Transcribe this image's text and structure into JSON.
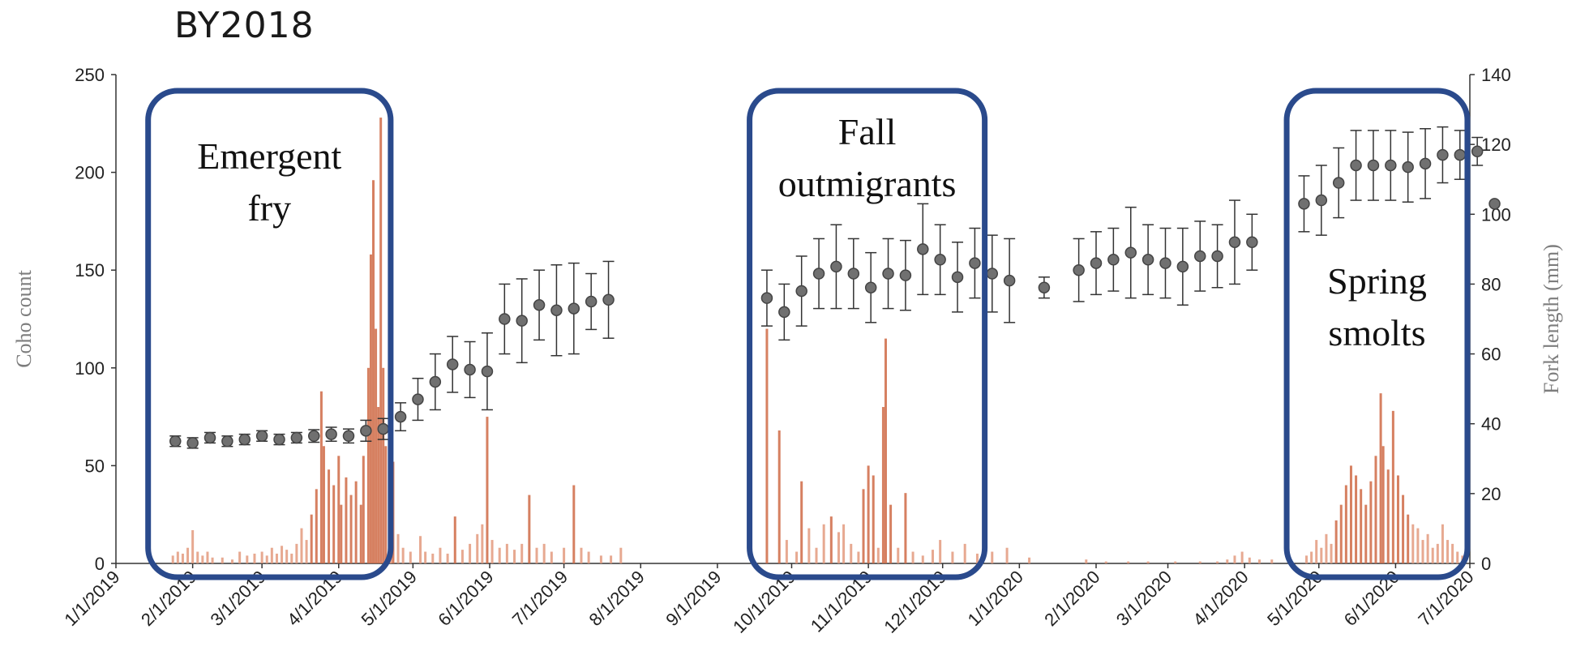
{
  "chart_data": {
    "type": "bar+scatter",
    "title": "BY2018",
    "ylabel": "Coho count",
    "y2label": "Fork length (mm)",
    "ylim": [
      0,
      250
    ],
    "y2lim": [
      0,
      140
    ],
    "yticks": [
      "0",
      "50",
      "100",
      "150",
      "200",
      "250"
    ],
    "y2ticks": [
      "0",
      "20",
      "40",
      "60",
      "80",
      "100",
      "120",
      "140"
    ],
    "xlim": [
      "2019-01-01",
      "2020-07-01"
    ],
    "xtick_labels": [
      "1/1/2019",
      "2/1/2019",
      "3/1/2019",
      "4/1/2019",
      "5/1/2019",
      "6/1/2019",
      "7/1/2019",
      "8/1/2019",
      "9/1/2019",
      "10/1/2019",
      "11/1/2019",
      "12/1/2019",
      "1/1/2020",
      "2/1/2020",
      "3/1/2020",
      "4/1/2020",
      "5/1/2020",
      "6/1/2020",
      "7/1/2020"
    ],
    "xtick_dates": [
      "2019-01-01",
      "2019-02-01",
      "2019-03-01",
      "2019-04-01",
      "2019-05-01",
      "2019-06-01",
      "2019-07-01",
      "2019-08-01",
      "2019-09-01",
      "2019-10-01",
      "2019-11-01",
      "2019-12-01",
      "2020-01-01",
      "2020-02-01",
      "2020-03-01",
      "2020-04-01",
      "2020-05-01",
      "2020-06-01",
      "2020-07-01"
    ],
    "colors": {
      "bars": "#e39a7e",
      "bars_strong": "#cf6a45",
      "markers": "#707070",
      "boxes": "#2a4a8c"
    },
    "annotations": [
      {
        "lines": [
          "Emergent",
          "fry"
        ],
        "start": "2019-01-14",
        "end": "2019-04-22"
      },
      {
        "lines": [
          "Fall",
          "outmigrants"
        ],
        "start": "2019-09-14",
        "end": "2019-12-18"
      },
      {
        "lines": [
          "Spring",
          "smolts"
        ],
        "start": "2020-04-18",
        "end": "2020-06-30"
      }
    ],
    "count_series": [
      [
        "2019-01-24",
        4
      ],
      [
        "2019-01-26",
        6
      ],
      [
        "2019-01-28",
        5
      ],
      [
        "2019-01-30",
        8
      ],
      [
        "2019-02-01",
        17
      ],
      [
        "2019-02-03",
        6
      ],
      [
        "2019-02-05",
        4
      ],
      [
        "2019-02-07",
        6
      ],
      [
        "2019-02-09",
        3
      ],
      [
        "2019-02-13",
        3
      ],
      [
        "2019-02-17",
        2
      ],
      [
        "2019-02-20",
        6
      ],
      [
        "2019-02-23",
        4
      ],
      [
        "2019-02-26",
        5
      ],
      [
        "2019-03-01",
        6
      ],
      [
        "2019-03-03",
        4
      ],
      [
        "2019-03-05",
        8
      ],
      [
        "2019-03-07",
        5
      ],
      [
        "2019-03-09",
        9
      ],
      [
        "2019-03-11",
        7
      ],
      [
        "2019-03-13",
        5
      ],
      [
        "2019-03-15",
        10
      ],
      [
        "2019-03-17",
        18
      ],
      [
        "2019-03-19",
        12
      ],
      [
        "2019-03-21",
        25
      ],
      [
        "2019-03-23",
        38
      ],
      [
        "2019-03-25",
        88
      ],
      [
        "2019-03-26",
        60
      ],
      [
        "2019-03-28",
        48
      ],
      [
        "2019-03-30",
        40
      ],
      [
        "2019-04-01",
        55
      ],
      [
        "2019-04-02",
        30
      ],
      [
        "2019-04-04",
        44
      ],
      [
        "2019-04-06",
        35
      ],
      [
        "2019-04-08",
        42
      ],
      [
        "2019-04-10",
        30
      ],
      [
        "2019-04-11",
        55
      ],
      [
        "2019-04-13",
        100
      ],
      [
        "2019-04-14",
        158
      ],
      [
        "2019-04-15",
        196
      ],
      [
        "2019-04-16",
        120
      ],
      [
        "2019-04-17",
        80
      ],
      [
        "2019-04-18",
        228
      ],
      [
        "2019-04-19",
        100
      ],
      [
        "2019-04-20",
        60
      ],
      [
        "2019-04-22",
        12
      ],
      [
        "2019-04-23",
        52
      ],
      [
        "2019-04-25",
        15
      ],
      [
        "2019-04-27",
        8
      ],
      [
        "2019-04-30",
        6
      ],
      [
        "2019-05-04",
        14
      ],
      [
        "2019-05-06",
        6
      ],
      [
        "2019-05-09",
        5
      ],
      [
        "2019-05-12",
        8
      ],
      [
        "2019-05-15",
        5
      ],
      [
        "2019-05-18",
        24
      ],
      [
        "2019-05-21",
        7
      ],
      [
        "2019-05-24",
        10
      ],
      [
        "2019-05-27",
        15
      ],
      [
        "2019-05-29",
        20
      ],
      [
        "2019-05-31",
        75
      ],
      [
        "2019-06-02",
        12
      ],
      [
        "2019-06-05",
        8
      ],
      [
        "2019-06-08",
        10
      ],
      [
        "2019-06-11",
        7
      ],
      [
        "2019-06-14",
        10
      ],
      [
        "2019-06-17",
        35
      ],
      [
        "2019-06-20",
        8
      ],
      [
        "2019-06-23",
        10
      ],
      [
        "2019-06-26",
        6
      ],
      [
        "2019-07-01",
        8
      ],
      [
        "2019-07-05",
        40
      ],
      [
        "2019-07-08",
        8
      ],
      [
        "2019-07-11",
        6
      ],
      [
        "2019-07-16",
        4
      ],
      [
        "2019-07-20",
        4
      ],
      [
        "2019-07-24",
        8
      ],
      [
        "2019-09-21",
        120
      ],
      [
        "2019-09-26",
        68
      ],
      [
        "2019-09-29",
        12
      ],
      [
        "2019-10-03",
        6
      ],
      [
        "2019-10-05",
        42
      ],
      [
        "2019-10-08",
        18
      ],
      [
        "2019-10-11",
        8
      ],
      [
        "2019-10-14",
        20
      ],
      [
        "2019-10-17",
        24
      ],
      [
        "2019-10-20",
        16
      ],
      [
        "2019-10-22",
        20
      ],
      [
        "2019-10-25",
        10
      ],
      [
        "2019-10-28",
        6
      ],
      [
        "2019-10-30",
        38
      ],
      [
        "2019-11-01",
        50
      ],
      [
        "2019-11-03",
        45
      ],
      [
        "2019-11-05",
        8
      ],
      [
        "2019-11-07",
        80
      ],
      [
        "2019-11-08",
        115
      ],
      [
        "2019-11-10",
        30
      ],
      [
        "2019-11-13",
        8
      ],
      [
        "2019-11-16",
        36
      ],
      [
        "2019-11-19",
        6
      ],
      [
        "2019-11-23",
        4
      ],
      [
        "2019-11-27",
        7
      ],
      [
        "2019-11-30",
        12
      ],
      [
        "2019-12-05",
        6
      ],
      [
        "2019-12-10",
        10
      ],
      [
        "2019-12-15",
        5
      ],
      [
        "2019-12-21",
        6
      ],
      [
        "2019-12-27",
        8
      ],
      [
        "2020-01-05",
        3
      ],
      [
        "2020-01-28",
        2
      ],
      [
        "2020-02-05",
        1
      ],
      [
        "2020-02-14",
        1
      ],
      [
        "2020-02-22",
        1
      ],
      [
        "2020-03-04",
        1
      ],
      [
        "2020-03-14",
        1
      ],
      [
        "2020-03-21",
        1
      ],
      [
        "2020-03-25",
        2
      ],
      [
        "2020-03-28",
        4
      ],
      [
        "2020-03-31",
        6
      ],
      [
        "2020-04-03",
        3
      ],
      [
        "2020-04-07",
        2
      ],
      [
        "2020-04-12",
        2
      ],
      [
        "2020-04-26",
        4
      ],
      [
        "2020-04-28",
        6
      ],
      [
        "2020-04-30",
        12
      ],
      [
        "2020-05-02",
        8
      ],
      [
        "2020-05-04",
        15
      ],
      [
        "2020-05-06",
        10
      ],
      [
        "2020-05-08",
        22
      ],
      [
        "2020-05-10",
        30
      ],
      [
        "2020-05-12",
        40
      ],
      [
        "2020-05-14",
        50
      ],
      [
        "2020-05-16",
        45
      ],
      [
        "2020-05-18",
        38
      ],
      [
        "2020-05-20",
        30
      ],
      [
        "2020-05-22",
        42
      ],
      [
        "2020-05-24",
        55
      ],
      [
        "2020-05-26",
        87
      ],
      [
        "2020-05-27",
        60
      ],
      [
        "2020-05-29",
        48
      ],
      [
        "2020-05-31",
        78
      ],
      [
        "2020-06-02",
        45
      ],
      [
        "2020-06-04",
        35
      ],
      [
        "2020-06-06",
        25
      ],
      [
        "2020-06-08",
        20
      ],
      [
        "2020-06-10",
        18
      ],
      [
        "2020-06-12",
        12
      ],
      [
        "2020-06-14",
        15
      ],
      [
        "2020-06-16",
        8
      ],
      [
        "2020-06-18",
        10
      ],
      [
        "2020-06-20",
        20
      ],
      [
        "2020-06-22",
        12
      ],
      [
        "2020-06-24",
        10
      ],
      [
        "2020-06-26",
        6
      ],
      [
        "2020-06-28",
        4
      ]
    ],
    "fork_length_series": [
      [
        "2019-01-25",
        35,
        1.5
      ],
      [
        "2019-02-01",
        34.5,
        1.5
      ],
      [
        "2019-02-08",
        36,
        1.5
      ],
      [
        "2019-02-15",
        35,
        1.5
      ],
      [
        "2019-02-22",
        35.5,
        1.5
      ],
      [
        "2019-03-01",
        36.5,
        1.5
      ],
      [
        "2019-03-08",
        35.5,
        1.5
      ],
      [
        "2019-03-15",
        36,
        1.5
      ],
      [
        "2019-03-22",
        36.5,
        1.8
      ],
      [
        "2019-03-29",
        37,
        2
      ],
      [
        "2019-04-05",
        36.5,
        2
      ],
      [
        "2019-04-12",
        38,
        3
      ],
      [
        "2019-04-19",
        38.5,
        3
      ],
      [
        "2019-04-26",
        42,
        4
      ],
      [
        "2019-05-03",
        47,
        6
      ],
      [
        "2019-05-10",
        52,
        8
      ],
      [
        "2019-05-17",
        57,
        8
      ],
      [
        "2019-05-24",
        55.5,
        8
      ],
      [
        "2019-05-31",
        55,
        11
      ],
      [
        "2019-06-07",
        70,
        10
      ],
      [
        "2019-06-14",
        69.5,
        12
      ],
      [
        "2019-06-21",
        74,
        10
      ],
      [
        "2019-06-28",
        72.5,
        13
      ],
      [
        "2019-07-05",
        73,
        13
      ],
      [
        "2019-07-12",
        75,
        8
      ],
      [
        "2019-07-19",
        75.5,
        11
      ],
      [
        "2019-09-21",
        76,
        8
      ],
      [
        "2019-09-28",
        72,
        8
      ],
      [
        "2019-10-05",
        78,
        10
      ],
      [
        "2019-10-12",
        83,
        10
      ],
      [
        "2019-10-19",
        85,
        12
      ],
      [
        "2019-10-26",
        83,
        10
      ],
      [
        "2019-11-02",
        79,
        10
      ],
      [
        "2019-11-09",
        83,
        10
      ],
      [
        "2019-11-16",
        82.5,
        10
      ],
      [
        "2019-11-23",
        90,
        13
      ],
      [
        "2019-11-30",
        87,
        10
      ],
      [
        "2019-12-07",
        82,
        10
      ],
      [
        "2019-12-14",
        86,
        10
      ],
      [
        "2019-12-21",
        83,
        11
      ],
      [
        "2019-12-28",
        81,
        12
      ],
      [
        "2020-01-11",
        79,
        3
      ],
      [
        "2020-01-25",
        84,
        9
      ],
      [
        "2020-02-01",
        86,
        9
      ],
      [
        "2020-02-08",
        87,
        9
      ],
      [
        "2020-02-15",
        89,
        13
      ],
      [
        "2020-02-22",
        87,
        10
      ],
      [
        "2020-02-29",
        86,
        10
      ],
      [
        "2020-03-07",
        85,
        11
      ],
      [
        "2020-03-14",
        88,
        10
      ],
      [
        "2020-03-21",
        88,
        9
      ],
      [
        "2020-03-28",
        92,
        12
      ],
      [
        "2020-04-04",
        92,
        8
      ],
      [
        "2020-04-25",
        103,
        8
      ],
      [
        "2020-05-02",
        104,
        10
      ],
      [
        "2020-05-09",
        109,
        10
      ],
      [
        "2020-05-16",
        114,
        10
      ],
      [
        "2020-05-23",
        114,
        10
      ],
      [
        "2020-05-30",
        114,
        10
      ],
      [
        "2020-06-06",
        113.5,
        10
      ],
      [
        "2020-06-13",
        114.5,
        10
      ],
      [
        "2020-06-20",
        117,
        8
      ],
      [
        "2020-06-27",
        117,
        7
      ],
      [
        "2020-07-04",
        118,
        4
      ],
      [
        "2020-07-11",
        103,
        0
      ]
    ]
  }
}
